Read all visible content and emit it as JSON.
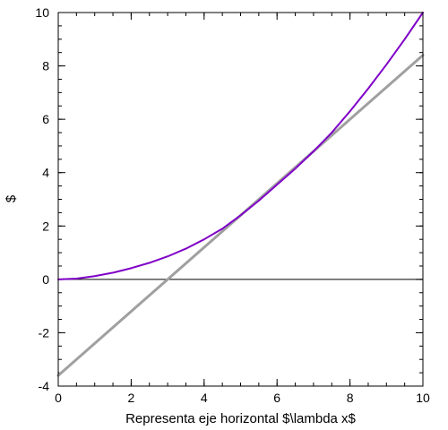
{
  "chart_data": {
    "type": "line",
    "title": "",
    "xlabel": "Representa eje horizontal $\\lambda x$",
    "ylabel": "$",
    "xlim": [
      0,
      10
    ],
    "ylim": [
      -4,
      10
    ],
    "xticks": [
      0,
      2,
      4,
      6,
      8,
      10
    ],
    "yticks": [
      -4,
      -2,
      0,
      2,
      4,
      6,
      8,
      10
    ],
    "x_minor_step": 0.5,
    "y_minor_step": 0.5,
    "grid": false,
    "zero_line": 0,
    "series": [
      {
        "color": "#7f00c8",
        "x": [
          0,
          0.5,
          1,
          1.5,
          2,
          2.5,
          3,
          3.5,
          4,
          4.5,
          5,
          5.5,
          6,
          6.5,
          7,
          7.5,
          8,
          8.5,
          9,
          9.5,
          10
        ],
        "y": [
          0.0,
          0.03,
          0.12,
          0.25,
          0.42,
          0.62,
          0.86,
          1.15,
          1.5,
          1.9,
          2.4,
          2.95,
          3.55,
          4.15,
          4.8,
          5.5,
          6.3,
          7.15,
          8.05,
          9.0,
          10.0
        ]
      },
      {
        "color": "#a0a0a0",
        "x": [
          0,
          10
        ],
        "y": [
          -3.6,
          8.4
        ]
      }
    ]
  }
}
